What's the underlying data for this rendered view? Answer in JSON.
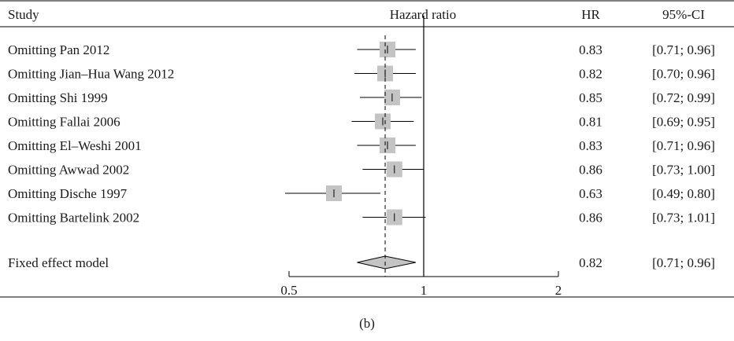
{
  "chart_data": {
    "type": "forest",
    "headers": {
      "study": "Study",
      "plot": "Hazard ratio",
      "hr": "HR",
      "ci": "95%-CI"
    },
    "x_axis": {
      "scale": "log",
      "ticks": [
        0.5,
        1,
        2
      ],
      "tick_labels": [
        "0.5",
        "1",
        "2"
      ],
      "xlim": [
        0.5,
        2
      ],
      "reference_line": 1
    },
    "pooled_line": 0.82,
    "rows": [
      {
        "study": "Omitting Pan 2012",
        "hr": 0.83,
        "lower": 0.71,
        "upper": 0.96,
        "hr_text": "0.83",
        "ci_text": "[0.71; 0.96]"
      },
      {
        "study": "Omitting Jian–Hua Wang 2012",
        "hr": 0.82,
        "lower": 0.7,
        "upper": 0.96,
        "hr_text": "0.82",
        "ci_text": "[0.70; 0.96]"
      },
      {
        "study": "Omitting Shi 1999",
        "hr": 0.85,
        "lower": 0.72,
        "upper": 0.99,
        "hr_text": "0.85",
        "ci_text": "[0.72; 0.99]"
      },
      {
        "study": "Omitting Fallai 2006",
        "hr": 0.81,
        "lower": 0.69,
        "upper": 0.95,
        "hr_text": "0.81",
        "ci_text": "[0.69; 0.95]"
      },
      {
        "study": "Omitting El–Weshi 2001",
        "hr": 0.83,
        "lower": 0.71,
        "upper": 0.96,
        "hr_text": "0.83",
        "ci_text": "[0.71; 0.96]"
      },
      {
        "study": "Omitting Awwad 2002",
        "hr": 0.86,
        "lower": 0.73,
        "upper": 1.0,
        "hr_text": "0.86",
        "ci_text": "[0.73; 1.00]"
      },
      {
        "study": "Omitting Dische 1997",
        "hr": 0.63,
        "lower": 0.49,
        "upper": 0.8,
        "hr_text": "0.63",
        "ci_text": "[0.49; 0.80]"
      },
      {
        "study": "Omitting Bartelink 2002",
        "hr": 0.86,
        "lower": 0.73,
        "upper": 1.01,
        "hr_text": "0.86",
        "ci_text": "[0.73; 1.01]"
      }
    ],
    "summary": {
      "study": "Fixed effect model",
      "hr": 0.82,
      "lower": 0.71,
      "upper": 0.96,
      "hr_text": "0.82",
      "ci_text": "[0.71; 0.96]"
    },
    "colors": {
      "box": "#c4c4c4",
      "diamond": "#c4c4c4",
      "line": "#000000"
    }
  },
  "caption": "(b)"
}
